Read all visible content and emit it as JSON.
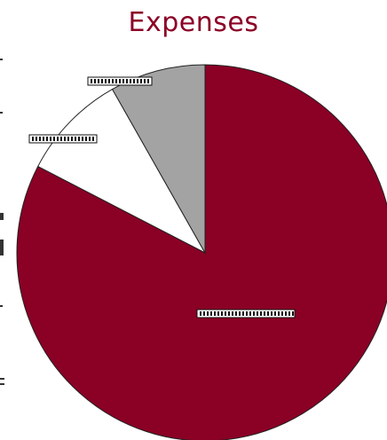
{
  "chart_data": {
    "type": "pie",
    "title": "Expenses",
    "slices": [
      {
        "value": 0.826,
        "color": "#8b0025",
        "label": ""
      },
      {
        "value": 0.092,
        "color": "#ffffff",
        "label": ""
      },
      {
        "value": 0.082,
        "color": "#a3a3a3",
        "label": ""
      }
    ],
    "start_direction": "top",
    "legend": "none"
  }
}
